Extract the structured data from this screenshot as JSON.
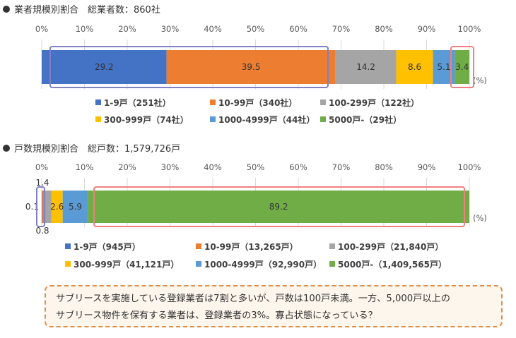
{
  "chart_data": [
    {
      "type": "bar",
      "orientation": "horizontal-stacked-100",
      "title": "業者規模別割合　総業者数：860社",
      "x_ticks": [
        "0%",
        "10%",
        "20%",
        "30%",
        "40%",
        "50%",
        "60%",
        "70%",
        "80%",
        "90%",
        "100%"
      ],
      "xlim": [
        0,
        100
      ],
      "unit_label": "(%)",
      "series": [
        {
          "name": "1-9戸（251社）",
          "value": 29.2,
          "label": "29.2",
          "color": "#4472c4"
        },
        {
          "name": "10-99戸（340社）",
          "value": 39.5,
          "label": "39.5",
          "color": "#ed7d31"
        },
        {
          "name": "100-299戸（122社）",
          "value": 14.2,
          "label": "14.2",
          "color": "#a5a5a5"
        },
        {
          "name": "300-999戸（74社）",
          "value": 8.6,
          "label": "8.6",
          "color": "#ffc000"
        },
        {
          "name": "1000-4999戸（44社）",
          "value": 5.1,
          "label": "5.1",
          "color": "#5b9bd5"
        },
        {
          "name": "5000戸-（29社）",
          "value": 3.4,
          "label": "3.4",
          "color": "#70ad47"
        }
      ],
      "highlight_color": "#8080c8",
      "highlight2_color": "#f08080",
      "legend_position": "bottom"
    },
    {
      "type": "bar",
      "orientation": "horizontal-stacked-100",
      "title": "戸数規模別割合　総戸数：1,579,726戸",
      "x_ticks": [
        "0%",
        "10%",
        "20%",
        "30%",
        "40%",
        "50%",
        "60%",
        "70%",
        "80%",
        "90%",
        "100%"
      ],
      "xlim": [
        0,
        100
      ],
      "unit_label": "(%)",
      "series": [
        {
          "name": "1-9戸（945戸）",
          "value": 0.1,
          "label": "0.1",
          "color": "#4472c4"
        },
        {
          "name": "10-99戸（13,265戸）",
          "value": 0.8,
          "label": "0.8",
          "color": "#ed7d31"
        },
        {
          "name": "100-299戸（21,840戸）",
          "value": 1.4,
          "label": "1.4",
          "color": "#a5a5a5"
        },
        {
          "name": "300-999戸（41,121戸）",
          "value": 2.6,
          "label": "2.6",
          "color": "#ffc000"
        },
        {
          "name": "1000-4999戸（92,990戸）",
          "value": 5.9,
          "label": "5.9",
          "color": "#5b9bd5"
        },
        {
          "name": "5000戸-（1,409,565戸）",
          "value": 89.2,
          "label": "89.2",
          "color": "#70ad47"
        }
      ],
      "highlight_color": "#8080c8",
      "highlight2_color": "#f08080",
      "legend_position": "bottom"
    }
  ],
  "note": {
    "line1": "サブリースを実施している登録業者は7割と多いが、戸数は100戸未満。一方、5,000戸以上の",
    "line2": "サブリース物件を保有する業者は、登録業者の3%。寡占状態になっている？"
  },
  "colors": {
    "grid": "#d9d9d9",
    "text": "#595959",
    "note_border": "#e0904a",
    "note_bg": "#fdf6ec"
  }
}
